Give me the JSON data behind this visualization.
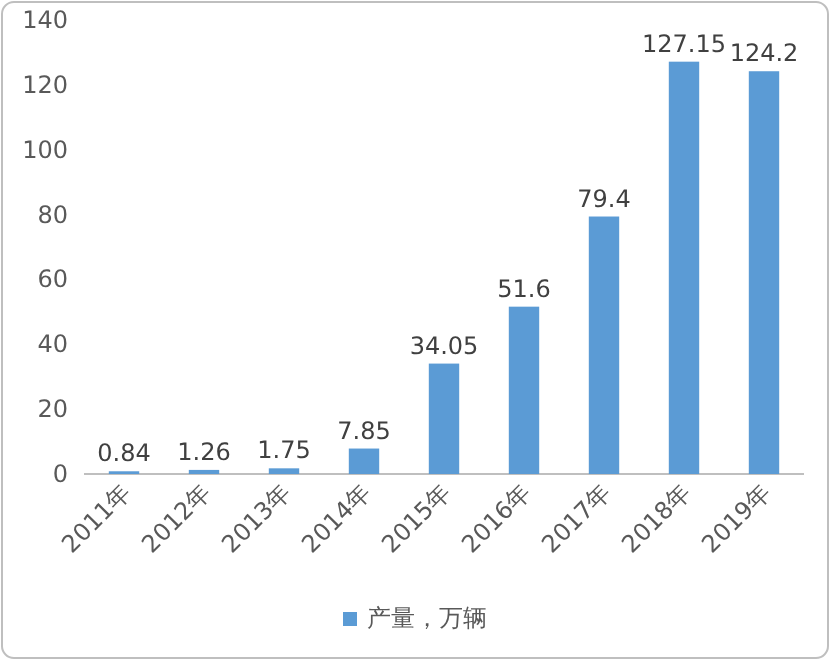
{
  "chart_data": {
    "type": "bar",
    "categories": [
      "2011年",
      "2012年",
      "2013年",
      "2014年",
      "2015年",
      "2016年",
      "2017年",
      "2018年",
      "2019年"
    ],
    "series": [
      {
        "name": "产量，万辆",
        "color": "#5b9bd5",
        "values": [
          0.84,
          1.26,
          1.75,
          7.85,
          34.05,
          51.6,
          79.4,
          127.15,
          124.2
        ]
      }
    ],
    "ylim": [
      0,
      140
    ],
    "yticks": [
      0,
      20,
      40,
      60,
      80,
      100,
      120,
      140
    ],
    "data_labels": true,
    "legend": "bottom",
    "grid": false
  }
}
